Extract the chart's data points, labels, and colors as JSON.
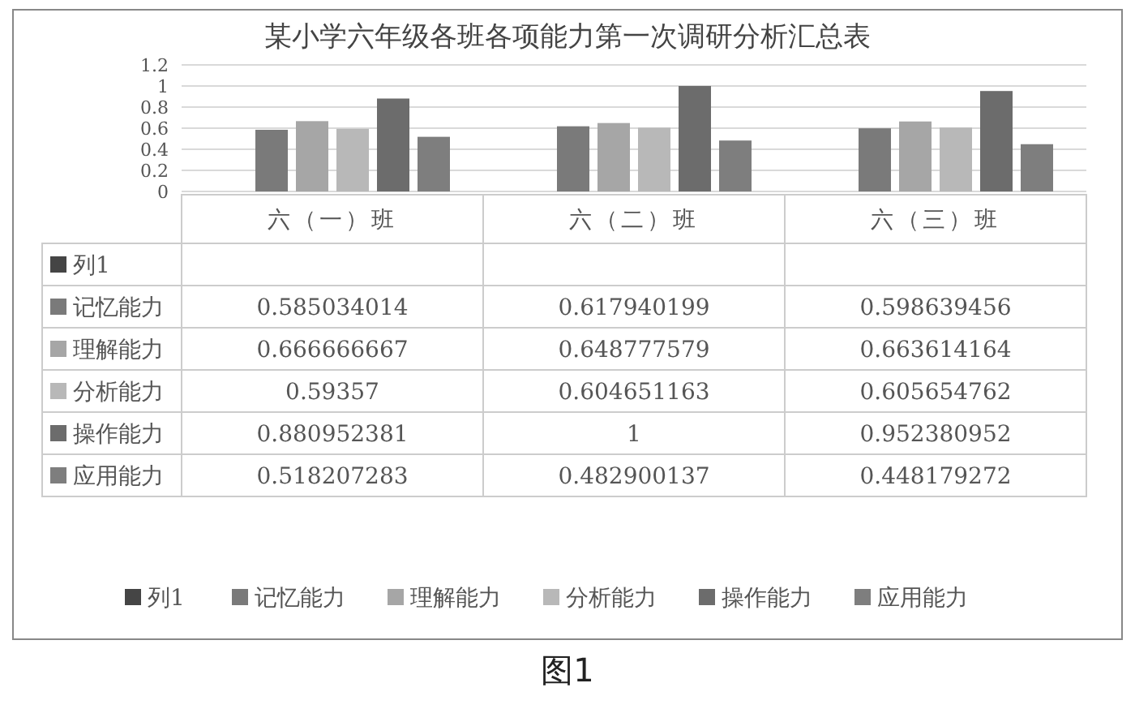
{
  "chart_data": {
    "type": "bar",
    "title": "某小学六年级各班各项能力第一次调研分析汇总表",
    "categories": [
      "六（一）班",
      "六（二）班",
      "六（三）班"
    ],
    "series": [
      {
        "name": "列1",
        "color": "#454545",
        "values": [
          null,
          null,
          null
        ]
      },
      {
        "name": "记忆能力",
        "color": "#7a7a7a",
        "values": [
          0.585034014,
          0.617940199,
          0.598639456
        ]
      },
      {
        "name": "理解能力",
        "color": "#a6a6a6",
        "values": [
          0.666666667,
          0.648777579,
          0.663614164
        ]
      },
      {
        "name": "分析能力",
        "color": "#b8b8b8",
        "values": [
          0.59357,
          0.604651163,
          0.605654762
        ]
      },
      {
        "name": "操作能力",
        "color": "#6c6c6c",
        "values": [
          0.880952381,
          1,
          0.952380952
        ]
      },
      {
        "name": "应用能力",
        "color": "#7e7e7e",
        "values": [
          0.518207283,
          0.482900137,
          0.448179272
        ]
      }
    ],
    "ylim": [
      0,
      1.2
    ],
    "yticks": [
      0,
      0.2,
      0.4,
      0.6,
      0.8,
      1,
      1.2
    ],
    "grid": "y",
    "legend": "bottom",
    "data_labels": true,
    "annotations": [
      "图1"
    ]
  }
}
